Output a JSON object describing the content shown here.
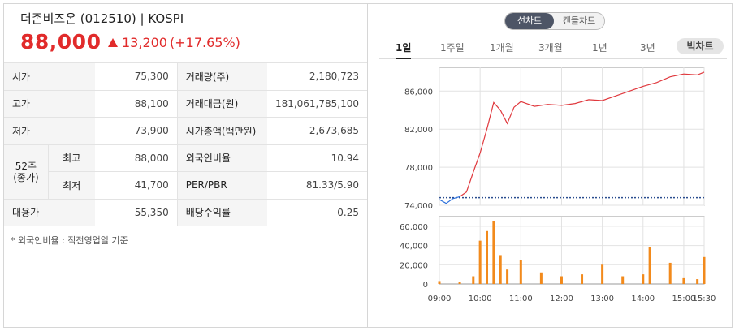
{
  "header": {
    "title": "더존비즈온 (012510) | KOSPI",
    "price": "88,000",
    "change": "13,200",
    "change_pct": "(+17.65%)"
  },
  "table": {
    "open_label": "시가",
    "open": "75,300",
    "volume_label": "거래량(주)",
    "volume": "2,180,723",
    "high_label": "고가",
    "high": "88,100",
    "value_label": "거래대금(원)",
    "value": "181,061,785,100",
    "low_label": "저가",
    "low": "73,900",
    "mcap_label": "시가총액(백만원)",
    "mcap": "2,673,685",
    "w52_label": "52주\n(종가)",
    "w52_high_label": "최고",
    "w52_high": "88,000",
    "foreign_label": "외국인비율",
    "foreign": "10.94",
    "w52_low_label": "최저",
    "w52_low": "41,700",
    "perpbr_label": "PER/PBR",
    "perpbr": "81.33/5.90",
    "substitute_label": "대용가",
    "substitute": "55,350",
    "dividend_label": "배당수익률",
    "dividend": "0.25"
  },
  "note": "* 외국인비율 : 직전영업일 기준",
  "chart_toggle": {
    "line": "선차트",
    "candle": "캔들차트"
  },
  "tabs": [
    "1일",
    "1주일",
    "1개월",
    "3개월",
    "1년",
    "3년"
  ],
  "big_chart": "빅차트",
  "chart_data": {
    "type": "line",
    "y_ticks": [
      "86,000",
      "82,000",
      "78,000",
      "74,000"
    ],
    "ylim": [
      74000,
      88500
    ],
    "volume_ticks": [
      "60,000",
      "40,000",
      "20,000",
      "0"
    ],
    "volume_ylim": [
      0,
      70000
    ],
    "x_ticks": [
      "09:00",
      "10:00",
      "11:00",
      "12:00",
      "13:00",
      "14:00",
      "15:00",
      "15:30"
    ],
    "prev_close": 74800,
    "price_series": [
      {
        "t": "09:00",
        "v": 74600
      },
      {
        "t": "09:10",
        "v": 74200
      },
      {
        "t": "09:20",
        "v": 74700
      },
      {
        "t": "09:30",
        "v": 74900
      },
      {
        "t": "09:40",
        "v": 75400
      },
      {
        "t": "09:50",
        "v": 77500
      },
      {
        "t": "10:00",
        "v": 79500
      },
      {
        "t": "10:10",
        "v": 82000
      },
      {
        "t": "10:20",
        "v": 84800
      },
      {
        "t": "10:30",
        "v": 84000
      },
      {
        "t": "10:40",
        "v": 82600
      },
      {
        "t": "10:50",
        "v": 84300
      },
      {
        "t": "11:00",
        "v": 84900
      },
      {
        "t": "11:20",
        "v": 84400
      },
      {
        "t": "11:40",
        "v": 84600
      },
      {
        "t": "12:00",
        "v": 84500
      },
      {
        "t": "12:20",
        "v": 84700
      },
      {
        "t": "12:40",
        "v": 85100
      },
      {
        "t": "13:00",
        "v": 85000
      },
      {
        "t": "13:20",
        "v": 85500
      },
      {
        "t": "13:40",
        "v": 86000
      },
      {
        "t": "14:00",
        "v": 86500
      },
      {
        "t": "14:20",
        "v": 86900
      },
      {
        "t": "14:40",
        "v": 87500
      },
      {
        "t": "15:00",
        "v": 87800
      },
      {
        "t": "15:20",
        "v": 87700
      },
      {
        "t": "15:30",
        "v": 88000
      }
    ],
    "volume_series": [
      {
        "t": "09:00",
        "v": 3000
      },
      {
        "t": "09:30",
        "v": 2500
      },
      {
        "t": "09:50",
        "v": 8000
      },
      {
        "t": "10:00",
        "v": 45000
      },
      {
        "t": "10:10",
        "v": 55000
      },
      {
        "t": "10:20",
        "v": 65000
      },
      {
        "t": "10:30",
        "v": 30000
      },
      {
        "t": "10:40",
        "v": 15000
      },
      {
        "t": "11:00",
        "v": 25000
      },
      {
        "t": "11:30",
        "v": 12000
      },
      {
        "t": "12:00",
        "v": 8000
      },
      {
        "t": "12:30",
        "v": 10000
      },
      {
        "t": "13:00",
        "v": 20000
      },
      {
        "t": "13:30",
        "v": 8000
      },
      {
        "t": "14:00",
        "v": 10000
      },
      {
        "t": "14:10",
        "v": 38000
      },
      {
        "t": "14:40",
        "v": 22000
      },
      {
        "t": "15:00",
        "v": 6000
      },
      {
        "t": "15:20",
        "v": 5000
      },
      {
        "t": "15:30",
        "v": 28000
      }
    ],
    "colors": {
      "line": "#e0393e",
      "line_below": "#2a6fdb",
      "volume": "#f28a1c",
      "prev_close": "#2a4d8f"
    }
  }
}
